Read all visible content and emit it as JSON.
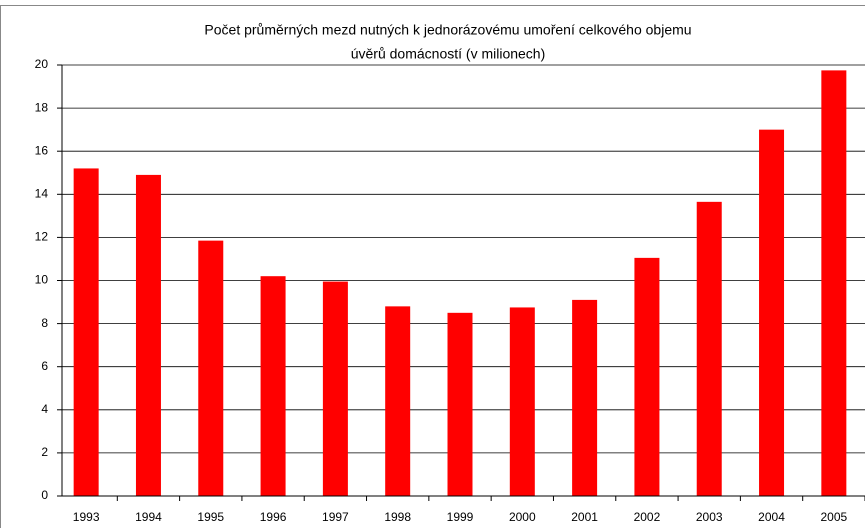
{
  "chart_data": {
    "type": "bar",
    "title": [
      "Počet průměrných mezd nutných k jednorázovému umoření celkového objemu",
      "úvěrů domácností (v milionech)"
    ],
    "categories": [
      "1993",
      "1994",
      "1995",
      "1996",
      "1997",
      "1998",
      "1999",
      "2000",
      "2001",
      "2002",
      "2003",
      "2004",
      "2005"
    ],
    "values": [
      15.2,
      14.9,
      11.85,
      10.2,
      9.95,
      8.8,
      8.5,
      8.75,
      9.1,
      11.05,
      13.65,
      17.0,
      19.75
    ],
    "color": "#ff0000",
    "ylim": [
      0,
      20
    ],
    "yticks": [
      0,
      2,
      4,
      6,
      8,
      10,
      12,
      14,
      16,
      18,
      20
    ],
    "grid": true
  }
}
